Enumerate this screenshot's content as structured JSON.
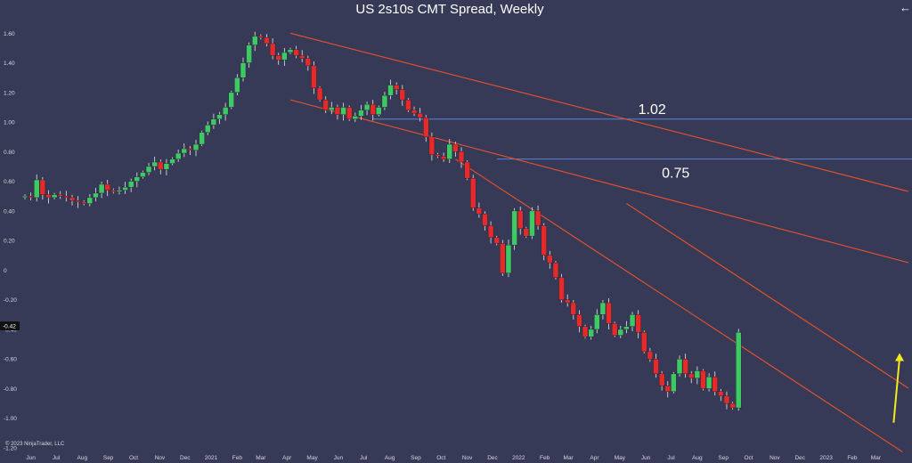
{
  "chart_data": {
    "type": "candlestick",
    "title": "US 2s10s CMT Spread, Weekly",
    "y_ticks": [
      "1.60",
      "1.40",
      "1.20",
      "1.00",
      "0.80",
      "0.60",
      "0.40",
      "0.20",
      "0",
      "-0.20",
      "-0.40",
      "-0.60",
      "-0.80",
      "-1.00",
      "-1.20"
    ],
    "ylim": [
      -1.2,
      1.68
    ],
    "x_tick_labels": [
      "Jun",
      "Jul",
      "Aug",
      "Sep",
      "Oct",
      "Nov",
      "Dec",
      "2021",
      "Feb",
      "Mar",
      "Apr",
      "May",
      "Jun",
      "Jul",
      "Aug",
      "Sep",
      "Oct",
      "Nov",
      "Dec",
      "2022",
      "Feb",
      "Mar",
      "Apr",
      "May",
      "Jun",
      "Jul",
      "Aug",
      "Sep",
      "Oct",
      "Nov",
      "Dec",
      "2023",
      "Feb",
      "Mar"
    ],
    "x_start": "2020-05-25",
    "x_end": "2023-03-27",
    "last_price": "-0.42",
    "horizontal_levels": [
      {
        "label": "1.02",
        "value": 1.02,
        "from": "2021-07-12"
      },
      {
        "label": "0.75",
        "value": 0.75,
        "from": "2021-12-06"
      }
    ],
    "trendlines": [
      {
        "from": [
          "2021-04-05",
          1.6
        ],
        "to": [
          "2023-03-27",
          0.55
        ]
      },
      {
        "from": [
          "2021-04-05",
          1.15
        ],
        "to": [
          "2023-03-27",
          0.07
        ]
      },
      {
        "from": [
          "2021-10-18",
          0.75
        ],
        "to": [
          "2023-03-20",
          -1.18
        ]
      },
      {
        "from": [
          "2022-05-09",
          0.45
        ],
        "to": [
          "2023-03-27",
          -0.75
        ]
      }
    ],
    "arrow": {
      "from": [
        "2023-03-20",
        -1.03
      ],
      "to": [
        "2023-03-27",
        -0.56
      ],
      "color": "#f2ea1d"
    },
    "weekly_close": [
      0.5,
      0.49,
      0.61,
      0.51,
      0.49,
      0.51,
      0.5,
      0.49,
      0.47,
      0.46,
      0.45,
      0.49,
      0.52,
      0.58,
      0.54,
      0.53,
      0.54,
      0.56,
      0.6,
      0.63,
      0.66,
      0.7,
      0.73,
      0.68,
      0.72,
      0.75,
      0.79,
      0.82,
      0.81,
      0.85,
      0.93,
      0.98,
      1.02,
      1.05,
      1.1,
      1.2,
      1.3,
      1.4,
      1.52,
      1.58,
      1.57,
      1.53,
      1.45,
      1.42,
      1.47,
      1.49,
      1.45,
      1.43,
      1.38,
      1.23,
      1.15,
      1.08,
      1.1,
      1.05,
      1.1,
      1.02,
      1.04,
      1.08,
      1.12,
      1.05,
      1.1,
      1.18,
      1.25,
      1.22,
      1.15,
      1.08,
      1.06,
      1.03,
      0.9,
      0.78,
      0.77,
      0.75,
      0.85,
      0.8,
      0.73,
      0.62,
      0.42,
      0.38,
      0.3,
      0.22,
      0.18,
      -0.02,
      0.17,
      0.4,
      0.28,
      0.23,
      0.4,
      0.3,
      0.1,
      0.05,
      -0.05,
      -0.2,
      -0.22,
      -0.3,
      -0.38,
      -0.45,
      -0.4,
      -0.3,
      -0.22,
      -0.36,
      -0.44,
      -0.4,
      -0.38,
      -0.3,
      -0.42,
      -0.55,
      -0.6,
      -0.7,
      -0.78,
      -0.82,
      -0.7,
      -0.6,
      -0.7,
      -0.73,
      -0.68,
      -0.8,
      -0.72,
      -0.82,
      -0.85,
      -0.9,
      -0.93,
      -0.42
    ]
  }
}
